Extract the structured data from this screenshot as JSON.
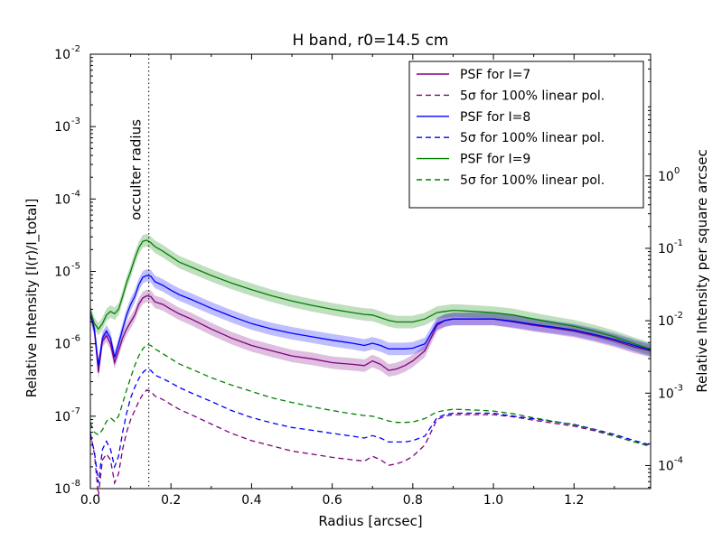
{
  "chart_data": {
    "type": "line",
    "title": "H band, r0=14.5 cm",
    "xlabel": "Radius [arcsec]",
    "ylabel": "Relative Intensity   [I(r)/I_total]",
    "ylabel_right": "Relative Intensity per square arcsec",
    "xlim": [
      0.0,
      1.39
    ],
    "ylim": [
      1e-08,
      0.01
    ],
    "yscale": "log",
    "ylim_right": [
      4.8e-05,
      48
    ],
    "grid": false,
    "legend_position": "top-right",
    "x_ticks": [
      0.0,
      0.2,
      0.4,
      0.6,
      0.8,
      1.0,
      1.2
    ],
    "x_tick_labels": [
      "0.0",
      "0.2",
      "0.4",
      "0.6",
      "0.8",
      "1.0",
      "1.2"
    ],
    "y_ticks": [
      {
        "base": "10",
        "exp": "-8",
        "value": 1e-08
      },
      {
        "base": "10",
        "exp": "-7",
        "value": 1e-07
      },
      {
        "base": "10",
        "exp": "-6",
        "value": 1e-06
      },
      {
        "base": "10",
        "exp": "-5",
        "value": 1e-05
      },
      {
        "base": "10",
        "exp": "-4",
        "value": 0.0001
      },
      {
        "base": "10",
        "exp": "-3",
        "value": 0.001
      },
      {
        "base": "10",
        "exp": "-2",
        "value": 0.01
      }
    ],
    "y_right_ticks": [
      {
        "base": "10",
        "exp": "-4",
        "value": 0.0001
      },
      {
        "base": "10",
        "exp": "-3",
        "value": 0.001
      },
      {
        "base": "10",
        "exp": "-2",
        "value": 0.01
      },
      {
        "base": "10",
        "exp": "-1",
        "value": 0.1
      },
      {
        "base": "10",
        "exp": "0",
        "value": 1
      }
    ],
    "annotation": {
      "text": "occulter radius",
      "x": 0.145
    },
    "series": [
      {
        "name": "PSF for I=7",
        "color": "#800080",
        "dash": "solid",
        "band": true,
        "x": [
          0.0,
          0.01,
          0.02,
          0.03,
          0.04,
          0.05,
          0.06,
          0.07,
          0.08,
          0.09,
          0.1,
          0.11,
          0.12,
          0.13,
          0.14,
          0.15,
          0.16,
          0.18,
          0.2,
          0.22,
          0.25,
          0.3,
          0.35,
          0.4,
          0.45,
          0.5,
          0.55,
          0.6,
          0.65,
          0.68,
          0.7,
          0.72,
          0.74,
          0.76,
          0.78,
          0.8,
          0.83,
          0.86,
          0.88,
          0.9,
          0.95,
          1.0,
          1.05,
          1.1,
          1.15,
          1.2,
          1.25,
          1.3,
          1.35,
          1.39
        ],
        "y": [
          2.6e-06,
          1.5e-06,
          4e-07,
          1.1e-06,
          1.3e-06,
          1e-06,
          5.5e-07,
          8e-07,
          1.2e-06,
          1.6e-06,
          2e-06,
          2.5e-06,
          3.5e-06,
          4.3e-06,
          4.6e-06,
          4.5e-06,
          3.8e-06,
          3.5e-06,
          3e-06,
          2.6e-06,
          2.2e-06,
          1.6e-06,
          1.2e-06,
          9.5e-07,
          8e-07,
          6.8e-07,
          6.2e-07,
          5.5e-07,
          5.2e-07,
          5e-07,
          5.8e-07,
          5.2e-07,
          4.3e-07,
          4.5e-07,
          5e-07,
          5.8e-07,
          8e-07,
          1.8e-06,
          2.1e-06,
          2.2e-06,
          2.2e-06,
          2.2e-06,
          2e-06,
          1.8e-06,
          1.65e-06,
          1.5e-06,
          1.3e-06,
          1.1e-06,
          9e-07,
          8e-07
        ]
      },
      {
        "name": "5σ for 100% linear pol.",
        "color": "#800080",
        "dash": "dashed",
        "band": false,
        "x": [
          0.0,
          0.01,
          0.02,
          0.03,
          0.04,
          0.05,
          0.06,
          0.07,
          0.08,
          0.09,
          0.1,
          0.11,
          0.12,
          0.13,
          0.14,
          0.15,
          0.16,
          0.18,
          0.2,
          0.22,
          0.25,
          0.3,
          0.35,
          0.4,
          0.45,
          0.5,
          0.55,
          0.6,
          0.65,
          0.68,
          0.7,
          0.72,
          0.74,
          0.76,
          0.78,
          0.8,
          0.83,
          0.86,
          0.88,
          0.9,
          0.95,
          1.0,
          1.05,
          1.1,
          1.15,
          1.2,
          1.25,
          1.3,
          1.35,
          1.39
        ],
        "y": [
          6e-08,
          3e-08,
          8e-09,
          2.5e-08,
          3e-08,
          2.5e-08,
          1.2e-08,
          1.6e-08,
          3.5e-08,
          6e-08,
          9e-08,
          1.2e-07,
          1.6e-07,
          2e-07,
          2.3e-07,
          2.2e-07,
          1.9e-07,
          1.7e-07,
          1.45e-07,
          1.25e-07,
          1.05e-07,
          7.8e-08,
          5.8e-08,
          4.6e-08,
          3.9e-08,
          3.3e-08,
          3e-08,
          2.7e-08,
          2.5e-08,
          2.4e-08,
          2.8e-08,
          2.5e-08,
          2.1e-08,
          2.2e-08,
          2.4e-08,
          2.8e-08,
          4e-08,
          9e-08,
          1e-07,
          1.05e-07,
          1.05e-07,
          1.05e-07,
          9.8e-08,
          8.8e-08,
          8e-08,
          7.3e-08,
          6.3e-08,
          5.3e-08,
          4.4e-08,
          3.9e-08
        ]
      },
      {
        "name": "PSF for I=8",
        "color": "#0000ff",
        "dash": "solid",
        "band": true,
        "x": [
          0.0,
          0.01,
          0.02,
          0.03,
          0.04,
          0.05,
          0.06,
          0.07,
          0.08,
          0.09,
          0.1,
          0.11,
          0.12,
          0.13,
          0.14,
          0.15,
          0.16,
          0.18,
          0.2,
          0.22,
          0.25,
          0.3,
          0.35,
          0.4,
          0.45,
          0.5,
          0.55,
          0.6,
          0.65,
          0.68,
          0.7,
          0.72,
          0.74,
          0.76,
          0.78,
          0.8,
          0.83,
          0.86,
          0.88,
          0.9,
          0.95,
          1.0,
          1.05,
          1.1,
          1.15,
          1.2,
          1.25,
          1.3,
          1.35,
          1.39
        ],
        "y": [
          2.7e-06,
          1.6e-06,
          5e-07,
          1.2e-06,
          1.5e-06,
          1.2e-06,
          6.5e-07,
          1e-06,
          1.6e-06,
          2.5e-06,
          3.5e-06,
          4.5e-06,
          6.5e-06,
          8.3e-06,
          8.8e-06,
          8.6e-06,
          7.2e-06,
          6.4e-06,
          5.5e-06,
          4.8e-06,
          4.1e-06,
          3.1e-06,
          2.4e-06,
          1.9e-06,
          1.6e-06,
          1.4e-06,
          1.25e-06,
          1.12e-06,
          1.02e-06,
          9.5e-07,
          1.02e-06,
          9.5e-07,
          8.5e-07,
          8.5e-07,
          8.5e-07,
          8.7e-07,
          1e-06,
          1.9e-06,
          2.1e-06,
          2.2e-06,
          2.2e-06,
          2.2e-06,
          2.05e-06,
          1.85e-06,
          1.7e-06,
          1.55e-06,
          1.35e-06,
          1.15e-06,
          9.5e-07,
          8.2e-07
        ]
      },
      {
        "name": "5σ for 100% linear pol.",
        "color": "#0000ff",
        "dash": "dashed",
        "band": false,
        "x": [
          0.0,
          0.01,
          0.02,
          0.03,
          0.04,
          0.05,
          0.06,
          0.07,
          0.08,
          0.09,
          0.1,
          0.11,
          0.12,
          0.13,
          0.14,
          0.15,
          0.16,
          0.18,
          0.2,
          0.22,
          0.25,
          0.3,
          0.35,
          0.4,
          0.45,
          0.5,
          0.55,
          0.6,
          0.65,
          0.68,
          0.7,
          0.72,
          0.74,
          0.76,
          0.78,
          0.8,
          0.83,
          0.86,
          0.88,
          0.9,
          0.95,
          1.0,
          1.05,
          1.1,
          1.15,
          1.2,
          1.25,
          1.3,
          1.35,
          1.39
        ],
        "y": [
          5.5e-08,
          3.2e-08,
          1.2e-08,
          3.5e-08,
          4.5e-08,
          3.5e-08,
          2e-08,
          2.8e-08,
          6e-08,
          1.1e-07,
          1.8e-07,
          2.5e-07,
          3.3e-07,
          4e-07,
          4.5e-07,
          4.3e-07,
          3.7e-07,
          3.3e-07,
          2.9e-07,
          2.5e-07,
          2.1e-07,
          1.6e-07,
          1.2e-07,
          9.6e-08,
          8.1e-08,
          7e-08,
          6.4e-08,
          5.8e-08,
          5.3e-08,
          5e-08,
          5.4e-08,
          5e-08,
          4.4e-08,
          4.4e-08,
          4.4e-08,
          4.6e-08,
          5.3e-08,
          9.5e-08,
          1.05e-07,
          1.1e-07,
          1.1e-07,
          1.1e-07,
          1e-07,
          9.2e-08,
          8.4e-08,
          7.7e-08,
          6.6e-08,
          5.6e-08,
          4.6e-08,
          4e-08
        ]
      },
      {
        "name": "PSF for I=9",
        "color": "#008000",
        "dash": "solid",
        "band": true,
        "x": [
          0.0,
          0.01,
          0.02,
          0.03,
          0.04,
          0.05,
          0.06,
          0.07,
          0.08,
          0.09,
          0.1,
          0.11,
          0.12,
          0.13,
          0.14,
          0.15,
          0.16,
          0.18,
          0.2,
          0.22,
          0.25,
          0.3,
          0.35,
          0.4,
          0.45,
          0.5,
          0.55,
          0.6,
          0.65,
          0.68,
          0.7,
          0.72,
          0.74,
          0.76,
          0.78,
          0.8,
          0.83,
          0.86,
          0.88,
          0.9,
          0.95,
          1.0,
          1.05,
          1.1,
          1.15,
          1.2,
          1.25,
          1.3,
          1.35,
          1.39
        ],
        "y": [
          2.8e-06,
          1.9e-06,
          1.6e-06,
          1.9e-06,
          2.5e-06,
          2.8e-06,
          2.6e-06,
          3e-06,
          4.5e-06,
          7e-06,
          1e-05,
          1.5e-05,
          2.1e-05,
          2.6e-05,
          2.7e-05,
          2.5e-05,
          2.2e-05,
          1.9e-05,
          1.6e-05,
          1.35e-05,
          1.15e-05,
          8.8e-06,
          6.9e-06,
          5.6e-06,
          4.6e-06,
          3.9e-06,
          3.4e-06,
          3e-06,
          2.7e-06,
          2.55e-06,
          2.5e-06,
          2.3e-06,
          2.1e-06,
          2e-06,
          2e-06,
          2e-06,
          2.2e-06,
          2.7e-06,
          2.8e-06,
          2.9e-06,
          2.8e-06,
          2.7e-06,
          2.5e-06,
          2.2e-06,
          1.95e-06,
          1.75e-06,
          1.5e-06,
          1.25e-06,
          1e-06,
          8.5e-07
        ]
      },
      {
        "name": "5σ for 100% linear pol.",
        "color": "#008000",
        "dash": "dashed",
        "band": false,
        "x": [
          0.0,
          0.01,
          0.02,
          0.03,
          0.04,
          0.05,
          0.06,
          0.07,
          0.08,
          0.09,
          0.1,
          0.11,
          0.12,
          0.13,
          0.14,
          0.15,
          0.16,
          0.18,
          0.2,
          0.22,
          0.25,
          0.3,
          0.35,
          0.4,
          0.45,
          0.5,
          0.55,
          0.6,
          0.65,
          0.68,
          0.7,
          0.72,
          0.74,
          0.76,
          0.78,
          0.8,
          0.83,
          0.86,
          0.88,
          0.9,
          0.95,
          1.0,
          1.05,
          1.1,
          1.15,
          1.2,
          1.25,
          1.3,
          1.35,
          1.39
        ],
        "y": [
          8e-08,
          6e-08,
          5.5e-08,
          6.5e-08,
          8.5e-08,
          9.5e-08,
          8.5e-08,
          1e-07,
          1.5e-07,
          2.3e-07,
          3.4e-07,
          5e-07,
          6.8e-07,
          8.5e-07,
          9.8e-07,
          9.5e-07,
          8.5e-07,
          7.3e-07,
          6.2e-07,
          5.3e-07,
          4.5e-07,
          3.4e-07,
          2.7e-07,
          2.2e-07,
          1.8e-07,
          1.55e-07,
          1.35e-07,
          1.2e-07,
          1.08e-07,
          1.02e-07,
          1e-07,
          9.3e-08,
          8.6e-08,
          8.2e-08,
          8.2e-08,
          8.3e-08,
          9.3e-08,
          1.15e-07,
          1.2e-07,
          1.25e-07,
          1.22e-07,
          1.18e-07,
          1.08e-07,
          9.5e-08,
          8.5e-08,
          7.6e-08,
          6.5e-08,
          5.4e-08,
          4.4e-08,
          3.8e-08
        ]
      }
    ]
  }
}
